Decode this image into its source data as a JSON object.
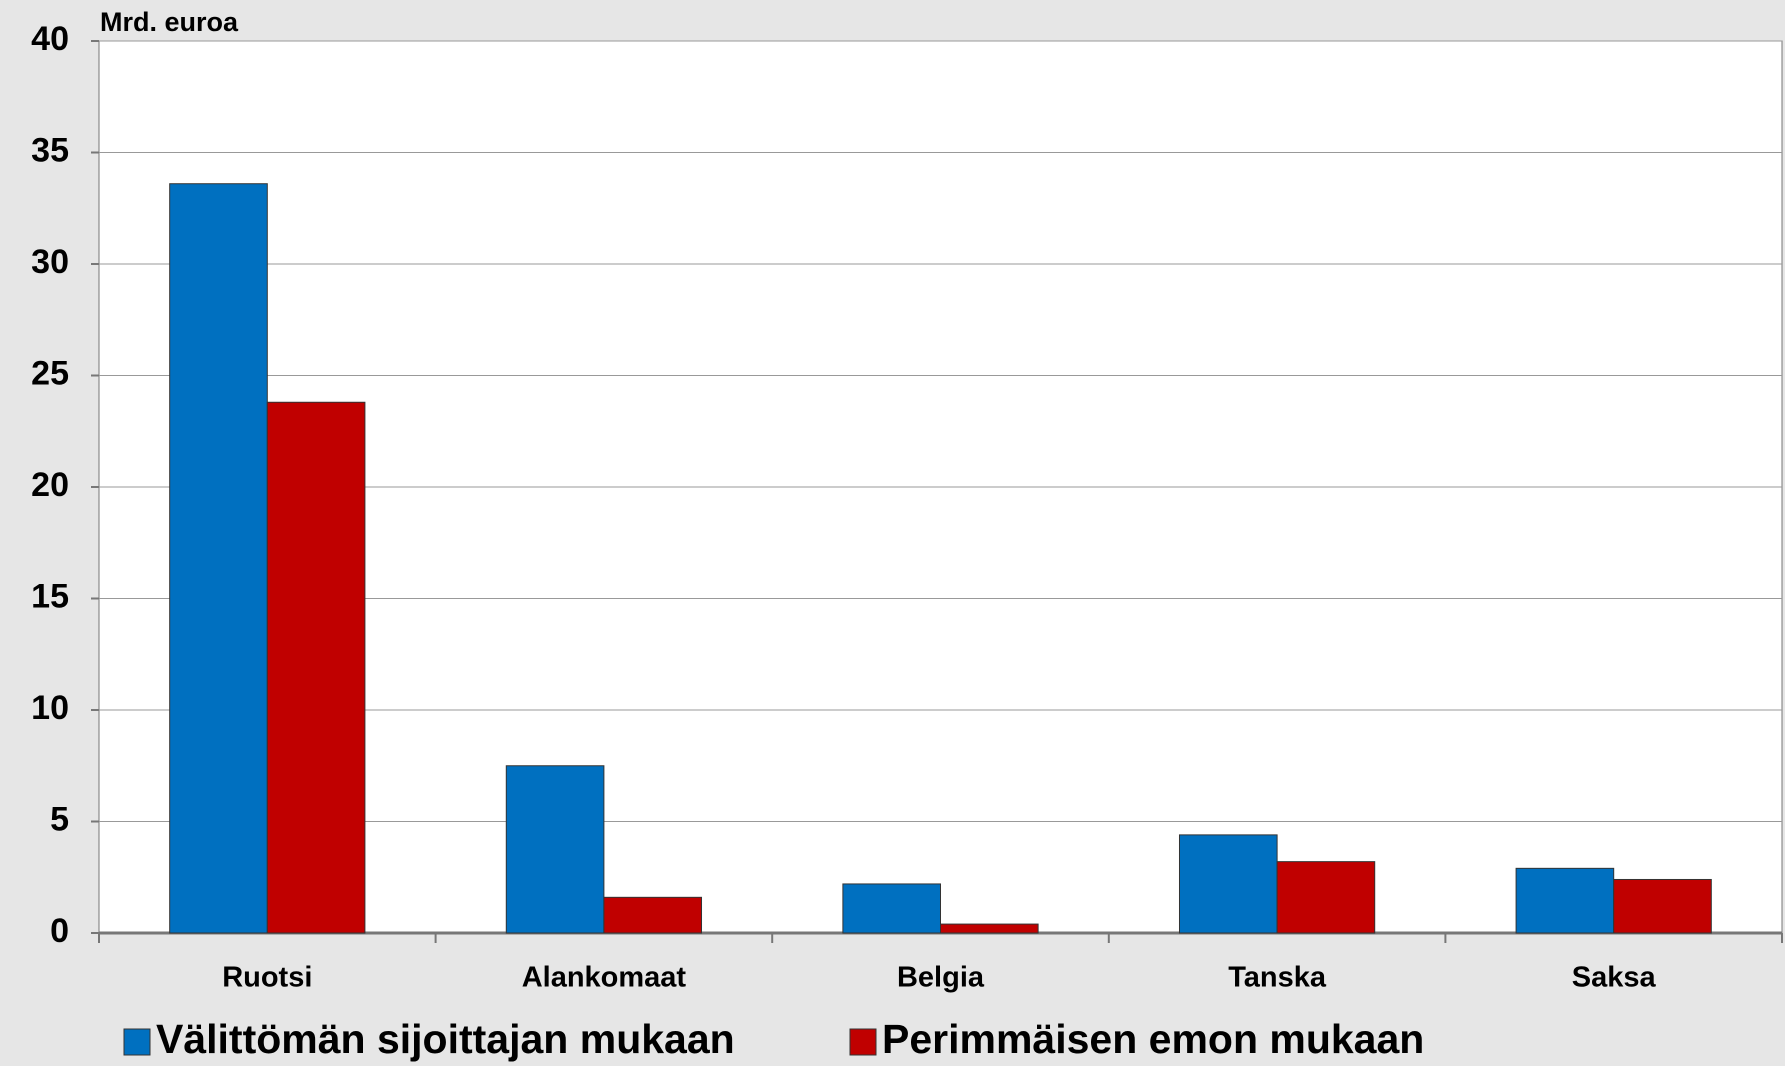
{
  "chart_data": {
    "type": "bar",
    "y_label": "Mrd. euroa",
    "categories": [
      "Ruotsi",
      "Alankomaat",
      "Belgia",
      "Tanska",
      "Saksa"
    ],
    "series": [
      {
        "name": "Välittömän sijoittajan mukaan",
        "color": "#0070c0",
        "values": [
          33.6,
          7.5,
          2.2,
          4.4,
          2.9
        ]
      },
      {
        "name": "Perimmäisen emon mukaan",
        "color": "#c00000",
        "values": [
          23.8,
          1.6,
          0.4,
          3.2,
          2.4
        ]
      }
    ],
    "ylim": [
      0,
      40
    ],
    "yticks": [
      0,
      5,
      10,
      15,
      20,
      25,
      30,
      35,
      40
    ],
    "grid": true,
    "legend": "bottom"
  }
}
